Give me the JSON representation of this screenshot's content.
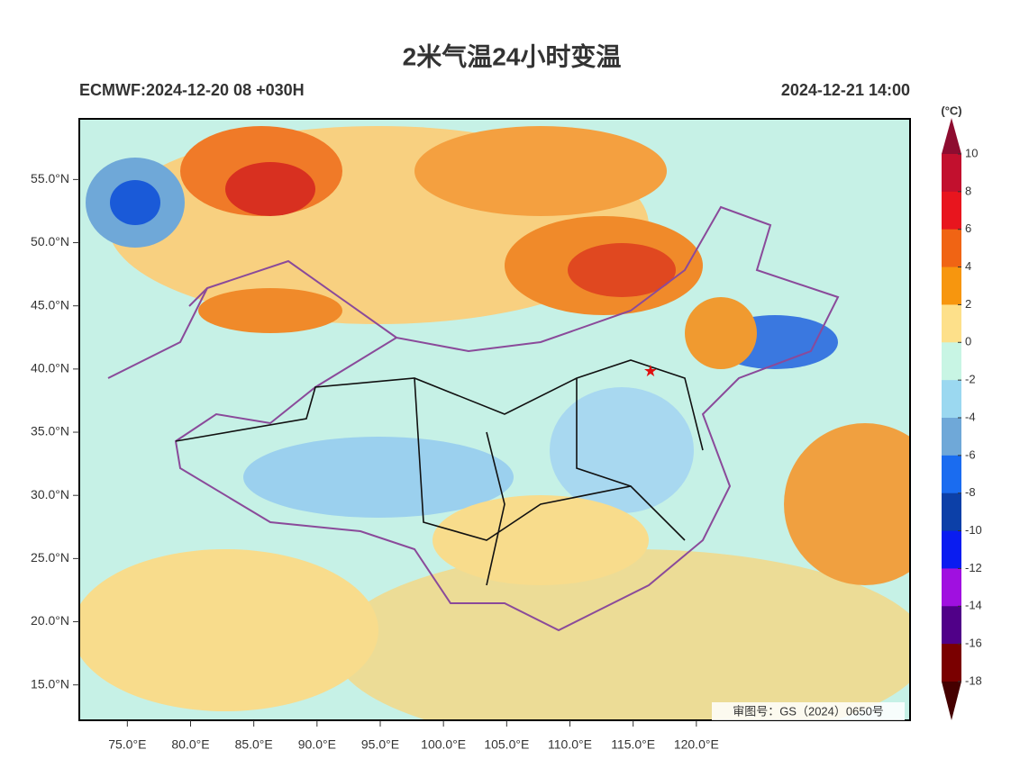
{
  "map": {
    "title": "2米气温24小时变温",
    "subtitle_left": "ECMWF:2024-12-20 08 +030H",
    "subtitle_right": "2024-12-21 14:00",
    "lon_range": [
      71.2,
      136.9
    ],
    "lat_range": [
      12.2,
      59.8
    ],
    "lat_ticks": [
      {
        "value": 55,
        "label": "55.0°N"
      },
      {
        "value": 50,
        "label": "50.0°N"
      },
      {
        "value": 45,
        "label": "45.0°N"
      },
      {
        "value": 40,
        "label": "40.0°N"
      },
      {
        "value": 35,
        "label": "35.0°N"
      },
      {
        "value": 30,
        "label": "30.0°N"
      },
      {
        "value": 25,
        "label": "25.0°N"
      },
      {
        "value": 20,
        "label": "20.0°N"
      },
      {
        "value": 15,
        "label": "15.0°N"
      }
    ],
    "lon_ticks": [
      {
        "value": 75,
        "label": "75.0°E"
      },
      {
        "value": 80,
        "label": "80.0°E"
      },
      {
        "value": 85,
        "label": "85.0°E"
      },
      {
        "value": 90,
        "label": "90.0°E"
      },
      {
        "value": 95,
        "label": "95.0°E"
      },
      {
        "value": 100,
        "label": "100.0°E"
      },
      {
        "value": 105,
        "label": "105.0°E"
      },
      {
        "value": 110,
        "label": "110.0°E"
      },
      {
        "value": 115,
        "label": "115.0°E"
      },
      {
        "value": 120,
        "label": "120.0°E"
      }
    ],
    "review_number": "审图号：GS（2024）0650号",
    "colorbar": {
      "unit": "(°C)",
      "levels": [
        10,
        8,
        6,
        4,
        2,
        0,
        -2,
        -4,
        -6,
        -8,
        -10,
        -12,
        -14,
        -16,
        -18
      ],
      "colors": [
        "#8e0c30",
        "#c2102e",
        "#e8151e",
        "#f06414",
        "#f7960e",
        "#fde08a",
        "#c8f5e4",
        "#9bd8f0",
        "#6fa8d8",
        "#1a6cf0",
        "#0c40a8",
        "#0a1cf0",
        "#a010e0",
        "#500088",
        "#7a0000",
        "#450000"
      ]
    }
  }
}
